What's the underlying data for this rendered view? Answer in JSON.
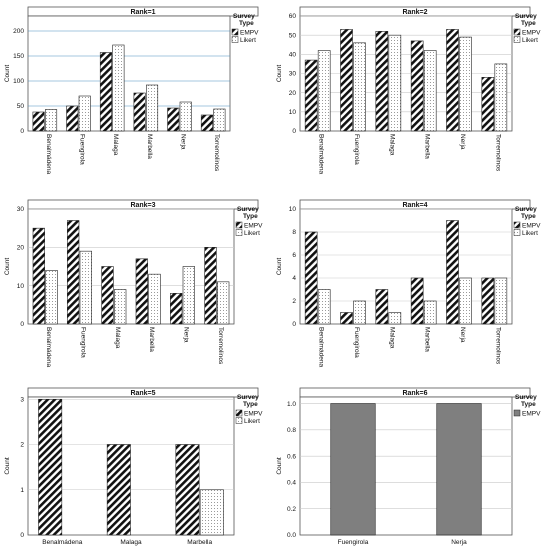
{
  "legend": {
    "title_line1": "Survey",
    "title_line2": "Type",
    "empv_label": "EMPV",
    "likert_label": "Likert"
  },
  "ylabel": "Count",
  "colors": {
    "frame": "#555555",
    "grid_rank1": "#4a8fbf",
    "grid": "#c9c9c9",
    "empv_solid": "#7f7f7f"
  },
  "chart_data": [
    {
      "type": "bar",
      "title": "Rank=1",
      "categories": [
        "Benalmádena",
        "Fuengirola",
        "Malaga",
        "Marbella",
        "Nerja",
        "Torremolinos"
      ],
      "series": [
        {
          "name": "EMPV",
          "values": [
            38,
            50,
            157,
            76,
            46,
            32
          ]
        },
        {
          "name": "Likert",
          "values": [
            43,
            70,
            172,
            92,
            58,
            44
          ]
        }
      ],
      "ylim": [
        0,
        230
      ],
      "yticks": [
        0,
        50,
        100,
        150,
        200
      ],
      "ylabel": "Count",
      "grid": true,
      "legend_placement": "right"
    },
    {
      "type": "bar",
      "title": "Rank=2",
      "categories": [
        "Benalmádena",
        "Fuengirola",
        "Malaga",
        "Marbella",
        "Nerja",
        "Torremolinos"
      ],
      "series": [
        {
          "name": "EMPV",
          "values": [
            37,
            53,
            52,
            47,
            53,
            28
          ]
        },
        {
          "name": "Likert",
          "values": [
            42,
            46,
            50,
            42,
            49,
            35
          ]
        }
      ],
      "ylim": [
        0,
        60
      ],
      "yticks": [
        0,
        10,
        20,
        30,
        40,
        50,
        60
      ],
      "ylabel": "Count",
      "grid": true,
      "legend_placement": "right"
    },
    {
      "type": "bar",
      "title": "Rank=3",
      "categories": [
        "Benalmádena",
        "Fuengirola",
        "Malaga",
        "Marbella",
        "Nerja",
        "Torremolinos"
      ],
      "series": [
        {
          "name": "EMPV",
          "values": [
            25,
            27,
            15,
            17,
            8,
            20
          ]
        },
        {
          "name": "Likert",
          "values": [
            14,
            19,
            9,
            13,
            15,
            11
          ]
        }
      ],
      "ylim": [
        0,
        30
      ],
      "yticks": [
        0,
        10,
        20,
        30
      ],
      "ylabel": "Count",
      "grid": true,
      "legend_placement": "right"
    },
    {
      "type": "bar",
      "title": "Rank=4",
      "categories": [
        "Benalmádena",
        "Fuengirola",
        "Malaga",
        "Marbella",
        "Nerja",
        "Torremolinos"
      ],
      "series": [
        {
          "name": "EMPV",
          "values": [
            8,
            1,
            3,
            4,
            9,
            4
          ]
        },
        {
          "name": "Likert",
          "values": [
            3,
            2,
            1,
            2,
            4,
            4
          ]
        }
      ],
      "ylim": [
        0,
        10
      ],
      "yticks": [
        0,
        2,
        4,
        6,
        8,
        10
      ],
      "ylabel": "Count",
      "grid": true,
      "legend_placement": "right"
    },
    {
      "type": "bar",
      "title": "Rank=5",
      "categories": [
        "Benalmádena",
        "Malaga",
        "Marbella"
      ],
      "series": [
        {
          "name": "EMPV",
          "values": [
            3,
            2,
            2
          ]
        },
        {
          "name": "Likert",
          "values": [
            0,
            0,
            1
          ]
        }
      ],
      "ylim": [
        0,
        3.05
      ],
      "yticks": [
        0,
        1,
        2,
        3
      ],
      "ylabel": "Count",
      "grid": true,
      "legend_placement": "right"
    },
    {
      "type": "bar",
      "title": "Rank=6",
      "categories": [
        "Fuengirola",
        "Nerja"
      ],
      "series": [
        {
          "name": "EMPV",
          "values": [
            1.0,
            1.0
          ]
        }
      ],
      "ylim": [
        0,
        1.05
      ],
      "yticks": [
        0.0,
        0.2,
        0.4,
        0.6,
        0.8,
        1.0
      ],
      "ytick_decimals": 1,
      "ylabel": "Count",
      "grid": true,
      "legend_placement": "right"
    }
  ]
}
